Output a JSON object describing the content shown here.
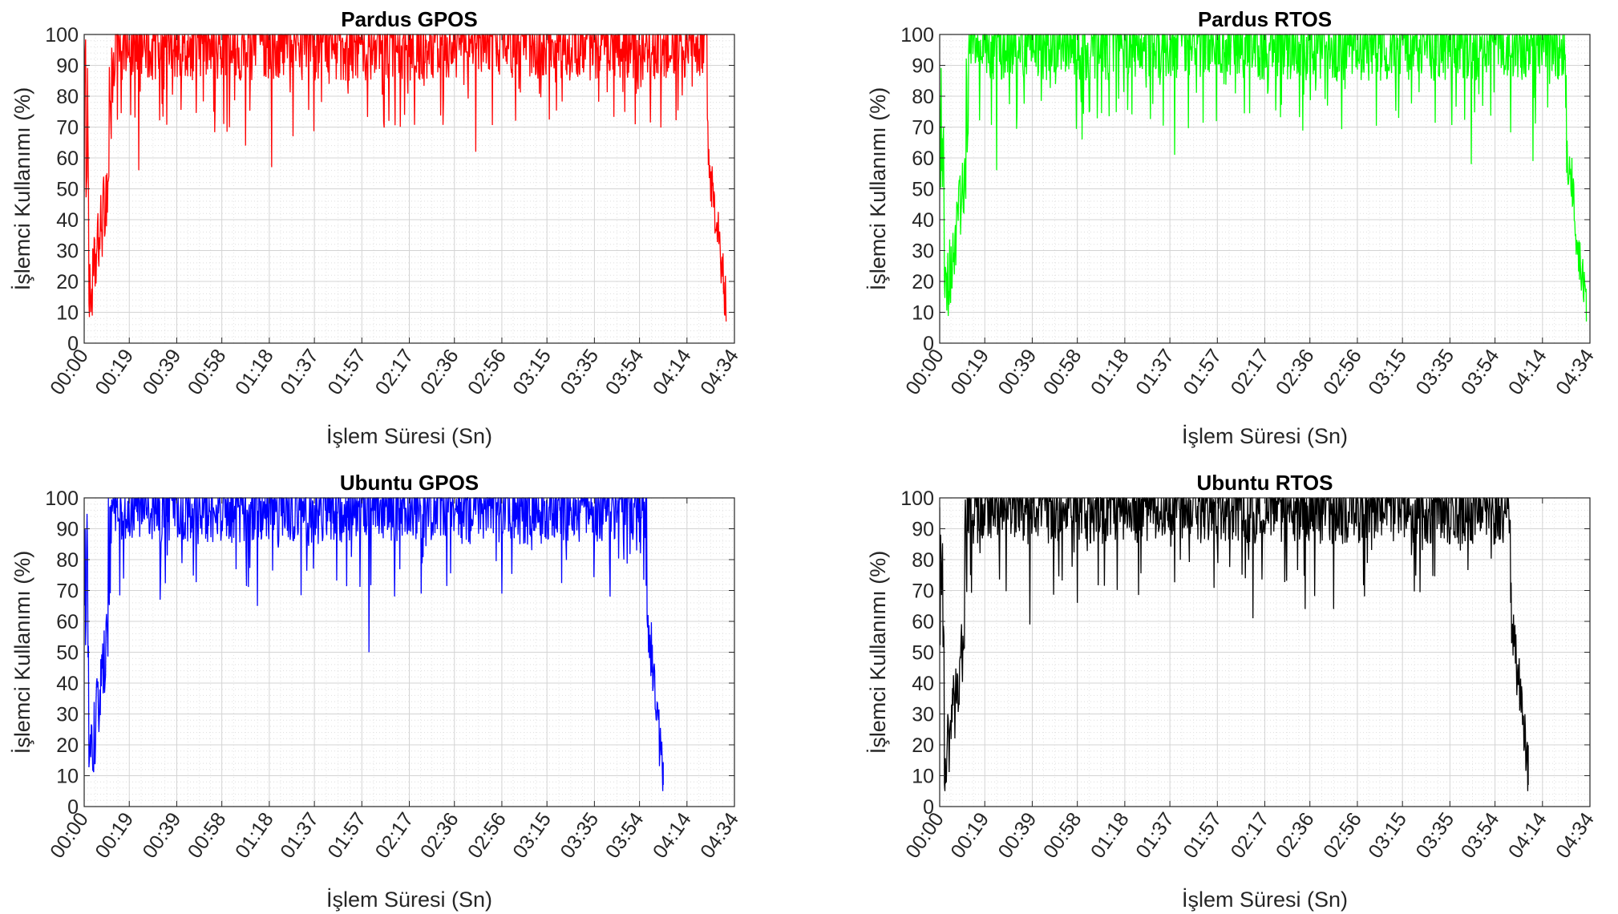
{
  "figure": {
    "layout": "2x2 grid"
  },
  "chart_data": [
    {
      "type": "line",
      "title": "Pardus GPOS",
      "xlabel": "İşlem Süresi (Sn)",
      "ylabel": "İşlemci Kullanımı (%)",
      "x_unit": "seconds",
      "xlim": [
        0,
        274
      ],
      "ylim": [
        0,
        100
      ],
      "x_tick_values": [
        0,
        19,
        39,
        58,
        78,
        97,
        117,
        137,
        156,
        176,
        195,
        215,
        234,
        254,
        274
      ],
      "x_tick_labels": [
        "00:00",
        "00:19",
        "00:39",
        "00:58",
        "01:18",
        "01:37",
        "01:57",
        "02:17",
        "02:36",
        "02:56",
        "03:15",
        "03:35",
        "03:54",
        "04:14",
        "04:34"
      ],
      "y_ticks": [
        0,
        10,
        20,
        30,
        40,
        50,
        60,
        70,
        80,
        90,
        100
      ],
      "grid": true,
      "minor_grid": true,
      "color": "#ff0000",
      "profile": {
        "end": 270.5,
        "ramp_up_end": 11.5,
        "plateau_end": 262.5,
        "band_low": 85,
        "band_high": 100,
        "dips": [
          {
            "x": 23,
            "y": 56
          },
          {
            "x": 68,
            "y": 64
          },
          {
            "x": 79,
            "y": 57
          },
          {
            "x": 88,
            "y": 67
          },
          {
            "x": 165,
            "y": 62
          }
        ]
      }
    },
    {
      "type": "line",
      "title": "Pardus RTOS",
      "xlabel": "İşlem Süresi (Sn)",
      "ylabel": "İşlemci Kullanımı (%)",
      "x_unit": "seconds",
      "xlim": [
        0,
        274
      ],
      "ylim": [
        0,
        100
      ],
      "x_tick_values": [
        0,
        19,
        39,
        58,
        78,
        97,
        117,
        137,
        156,
        176,
        195,
        215,
        234,
        254,
        274
      ],
      "x_tick_labels": [
        "00:00",
        "00:19",
        "00:39",
        "00:58",
        "01:18",
        "01:37",
        "01:57",
        "02:17",
        "02:36",
        "02:56",
        "03:15",
        "03:35",
        "03:54",
        "04:14",
        "04:34"
      ],
      "y_ticks": [
        0,
        10,
        20,
        30,
        40,
        50,
        60,
        70,
        80,
        90,
        100
      ],
      "grid": true,
      "minor_grid": true,
      "color": "#00ff00",
      "profile": {
        "end": 272.5,
        "ramp_up_end": 12,
        "plateau_end": 264,
        "band_low": 85,
        "band_high": 100,
        "dips": [
          {
            "x": 24,
            "y": 56
          },
          {
            "x": 60,
            "y": 66
          },
          {
            "x": 99,
            "y": 61
          },
          {
            "x": 224,
            "y": 58
          },
          {
            "x": 250,
            "y": 59
          }
        ]
      }
    },
    {
      "type": "line",
      "title": "Ubuntu GPOS",
      "xlabel": "İşlem Süresi (Sn)",
      "ylabel": "İşlemci Kullanımı (%)",
      "x_unit": "seconds",
      "xlim": [
        0,
        274
      ],
      "ylim": [
        0,
        100
      ],
      "x_tick_values": [
        0,
        19,
        39,
        58,
        78,
        97,
        117,
        137,
        156,
        176,
        195,
        215,
        234,
        254,
        274
      ],
      "x_tick_labels": [
        "00:00",
        "00:19",
        "00:39",
        "00:58",
        "01:18",
        "01:37",
        "01:57",
        "02:17",
        "02:36",
        "02:56",
        "03:15",
        "03:35",
        "03:54",
        "04:14",
        "04:34"
      ],
      "y_ticks": [
        0,
        10,
        20,
        30,
        40,
        50,
        60,
        70,
        80,
        90,
        100
      ],
      "grid": true,
      "minor_grid": true,
      "color": "#0000ff",
      "profile": {
        "end": 244,
        "ramp_up_end": 11,
        "plateau_end": 237,
        "band_low": 85,
        "band_high": 100,
        "dips": [
          {
            "x": 32,
            "y": 67
          },
          {
            "x": 73,
            "y": 65
          },
          {
            "x": 120,
            "y": 50
          },
          {
            "x": 142,
            "y": 69
          },
          {
            "x": 176,
            "y": 69
          }
        ]
      }
    },
    {
      "type": "line",
      "title": "Ubuntu RTOS",
      "xlabel": "İşlem Süresi (Sn)",
      "ylabel": "İşlemci Kullanımı (%)",
      "x_unit": "seconds",
      "xlim": [
        0,
        274
      ],
      "ylim": [
        0,
        100
      ],
      "x_tick_values": [
        0,
        19,
        39,
        58,
        78,
        97,
        117,
        137,
        156,
        176,
        195,
        215,
        234,
        254,
        274
      ],
      "x_tick_labels": [
        "00:00",
        "00:19",
        "00:39",
        "00:58",
        "01:18",
        "01:37",
        "01:57",
        "02:17",
        "02:36",
        "02:56",
        "03:15",
        "03:35",
        "03:54",
        "04:14",
        "04:34"
      ],
      "y_ticks": [
        0,
        10,
        20,
        30,
        40,
        50,
        60,
        70,
        80,
        90,
        100
      ],
      "grid": true,
      "minor_grid": true,
      "color": "#000000",
      "profile": {
        "end": 248,
        "ramp_up_end": 11.5,
        "plateau_end": 240.5,
        "band_low": 85,
        "band_high": 100,
        "dips": [
          {
            "x": 38,
            "y": 59
          },
          {
            "x": 58,
            "y": 66
          },
          {
            "x": 132,
            "y": 61
          },
          {
            "x": 154,
            "y": 64
          },
          {
            "x": 166,
            "y": 64
          }
        ]
      }
    }
  ]
}
